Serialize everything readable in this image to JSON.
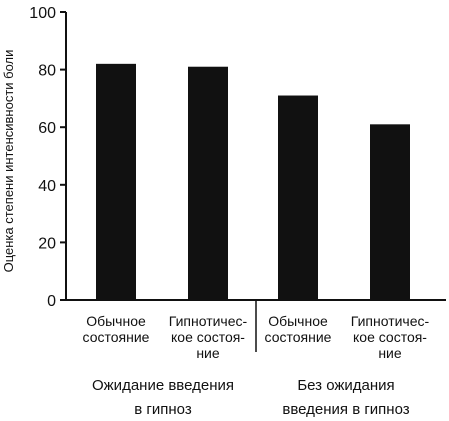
{
  "chart_data": {
    "type": "bar",
    "title": "",
    "ylabel": "Оценка степени интенсивности боли",
    "xlabel": "",
    "ylim": [
      0,
      100
    ],
    "yticks": [
      0,
      20,
      40,
      60,
      80,
      100
    ],
    "grid": false,
    "legend": "none",
    "bar_color": "#111111",
    "categories": [
      {
        "lines": [
          "Обычное",
          "состояние"
        ]
      },
      {
        "lines": [
          "Гипнотичес-",
          "кое состоя-",
          "ние"
        ]
      },
      {
        "lines": [
          "Обычное",
          "состояние"
        ]
      },
      {
        "lines": [
          "Гипнотичес-",
          "кое состоя-",
          "ние"
        ]
      }
    ],
    "values": [
      82,
      81,
      71,
      61
    ],
    "groups": [
      {
        "lines": [
          "Ожидание введения",
          "в гипноз"
        ],
        "categories": [
          0,
          1
        ]
      },
      {
        "lines": [
          "Без ожидания",
          "введения в гипноз"
        ],
        "categories": [
          2,
          3
        ]
      }
    ]
  }
}
